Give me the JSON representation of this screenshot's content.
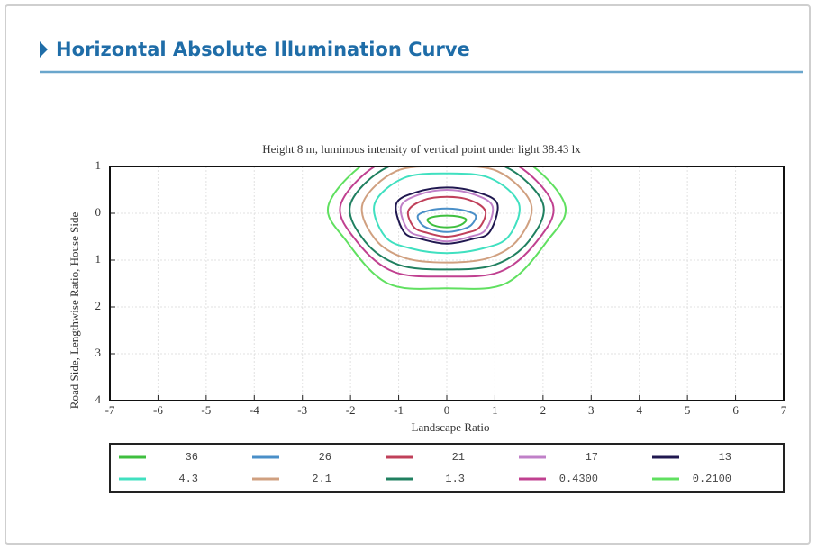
{
  "header": {
    "title": "Horizontal Absolute Illumination Curve"
  },
  "chart_data": {
    "type": "contour",
    "title": "Height 8 m, luminous intensity of vertical point under light 38.43 lx",
    "x_label": "Landscape Ratio",
    "y_label": "Road Side, Lengthwise Ratio, House Side",
    "xlim": [
      -7,
      7
    ],
    "xticks": [
      -7,
      -6,
      -5,
      -4,
      -3,
      -2,
      -1,
      0,
      1,
      2,
      3,
      4,
      5,
      6,
      7
    ],
    "ylim": [
      -1,
      4
    ],
    "y_inverted": true,
    "yticks": [
      {
        "value": -1,
        "label": "1"
      },
      0,
      1,
      2,
      3,
      4
    ],
    "grid": true,
    "legend": "bottom",
    "series": [
      {
        "name": "36",
        "color": "#3fbf3f",
        "x": [
          0,
          0.24,
          0.4,
          0.34,
          0.2,
          0,
          -0.2,
          -0.34,
          -0.4,
          -0.24
        ],
        "y": [
          0.05,
          0.07,
          0.13,
          0.22,
          0.28,
          0.3,
          0.28,
          0.22,
          0.13,
          0.07
        ]
      },
      {
        "name": "26",
        "color": "#4a8fc8",
        "x": [
          0,
          0.36,
          0.6,
          0.51,
          0.3,
          0,
          -0.3,
          -0.51,
          -0.6,
          -0.36
        ],
        "y": [
          -0.1,
          -0.06,
          0.05,
          0.25,
          0.35,
          0.4,
          0.35,
          0.25,
          0.05,
          -0.06
        ]
      },
      {
        "name": "21",
        "color": "#c0405a",
        "x": [
          0,
          0.48,
          0.8,
          0.68,
          0.4,
          0,
          -0.4,
          -0.68,
          -0.8,
          -0.48
        ],
        "y": [
          -0.35,
          -0.28,
          -0.05,
          0.3,
          0.42,
          0.5,
          0.42,
          0.3,
          -0.05,
          -0.28
        ]
      },
      {
        "name": "17",
        "color": "#c080c8",
        "x": [
          0,
          0.57,
          0.95,
          0.81,
          0.48,
          0,
          -0.48,
          -0.81,
          -0.95,
          -0.57
        ],
        "y": [
          -0.5,
          -0.4,
          -0.15,
          0.35,
          0.5,
          0.6,
          0.5,
          0.35,
          -0.15,
          -0.4
        ]
      },
      {
        "name": "13",
        "color": "#201850",
        "x": [
          0,
          0.63,
          1.05,
          0.89,
          0.53,
          0,
          -0.53,
          -0.89,
          -1.05,
          -0.63
        ],
        "y": [
          -0.55,
          -0.45,
          -0.2,
          0.4,
          0.55,
          0.65,
          0.55,
          0.4,
          -0.2,
          -0.45
        ]
      },
      {
        "name": "4.3",
        "color": "#40e0c0",
        "x": [
          0,
          0.9,
          1.5,
          1.28,
          0.75,
          0,
          -0.75,
          -1.28,
          -1.5,
          -0.9
        ],
        "y": [
          -0.85,
          -0.75,
          -0.2,
          0.5,
          0.75,
          0.85,
          0.75,
          0.5,
          -0.2,
          -0.75
        ]
      },
      {
        "name": "2.1",
        "color": "#d0a080",
        "x": [
          0,
          1.05,
          1.75,
          1.49,
          0.88,
          0,
          -0.88,
          -1.49,
          -1.75,
          -1.05
        ],
        "y": [
          -1.0,
          -0.9,
          -0.2,
          0.55,
          0.95,
          1.05,
          0.95,
          0.55,
          -0.2,
          -0.9
        ]
      },
      {
        "name": "1.3",
        "color": "#208060",
        "x": [
          0,
          1.2,
          2,
          1.7,
          1,
          0,
          -1,
          -1.7,
          -2,
          -1.2
        ],
        "y": [
          -1.1,
          -1.0,
          -0.2,
          0.6,
          1.1,
          1.2,
          1.1,
          0.6,
          -0.2,
          -1.0
        ]
      },
      {
        "name": "0.4300",
        "color": "#c04090",
        "x": [
          0,
          1.32,
          2.2,
          1.87,
          1.1,
          0,
          -1.1,
          -1.87,
          -2.2,
          -1.32
        ],
        "y": [
          -1.2,
          -1.1,
          -0.2,
          0.6,
          1.25,
          1.35,
          1.25,
          0.6,
          -0.2,
          -1.1
        ]
      },
      {
        "name": "0.2100",
        "color": "#60e060",
        "x": [
          0,
          1.47,
          2.45,
          2.08,
          1.22,
          0,
          -1.22,
          -2.08,
          -2.45,
          -1.47
        ],
        "y": [
          -1.3,
          -1.2,
          -0.2,
          0.6,
          1.5,
          1.6,
          1.5,
          0.6,
          -0.2,
          -1.2
        ]
      }
    ]
  }
}
